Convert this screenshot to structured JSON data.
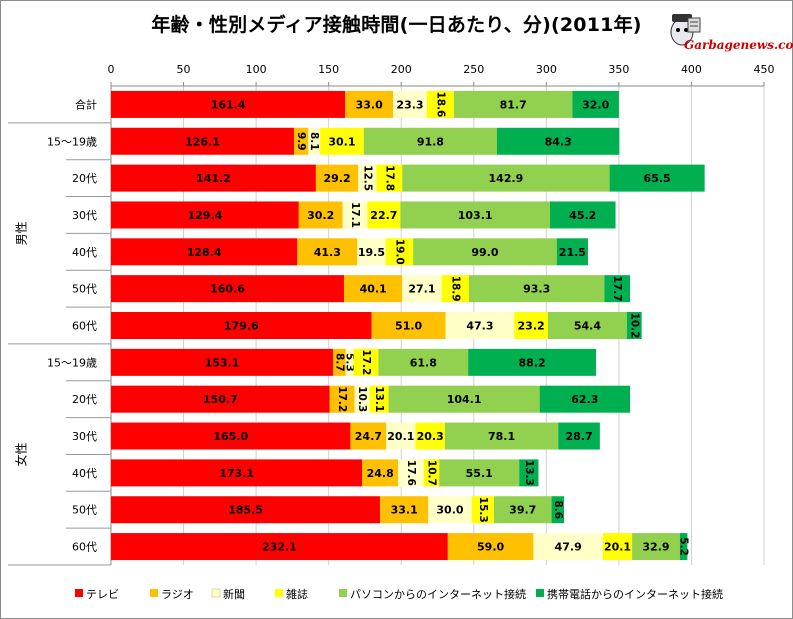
{
  "title": "年齢・性別メディア接触時間(一日あたり、分)(2011年)",
  "watermark": "Garbagenews.com",
  "chart_data": {
    "type": "bar",
    "orientation": "horizontal",
    "stacked": true,
    "xlim": [
      0,
      450
    ],
    "xticks": [
      0,
      50,
      100,
      150,
      200,
      250,
      300,
      350,
      400,
      450
    ],
    "grid": true,
    "legend_position": "bottom",
    "groups": [
      {
        "label": "男性",
        "rows": [
          1,
          6
        ]
      },
      {
        "label": "女性",
        "rows": [
          7,
          12
        ]
      }
    ],
    "categories": [
      "合計",
      "15〜19歳",
      "20代",
      "30代",
      "40代",
      "50代",
      "60代",
      "15〜19歳",
      "20代",
      "30代",
      "40代",
      "50代",
      "60代"
    ],
    "series": [
      {
        "name": "テレビ",
        "color": "#ff0000",
        "values": [
          161.4,
          126.1,
          141.2,
          129.4,
          128.4,
          160.6,
          179.6,
          153.1,
          150.7,
          165.0,
          173.1,
          185.5,
          232.1
        ]
      },
      {
        "name": "ラジオ",
        "color": "#ffc000",
        "values": [
          33.0,
          9.9,
          29.2,
          30.2,
          41.3,
          40.1,
          51.0,
          8.7,
          17.2,
          24.7,
          24.8,
          33.1,
          59.0
        ]
      },
      {
        "name": "新聞",
        "color": "#ffffc8",
        "values": [
          23.3,
          8.1,
          12.5,
          17.1,
          19.5,
          27.1,
          47.3,
          5.3,
          10.3,
          20.1,
          17.6,
          30.0,
          47.9
        ]
      },
      {
        "name": "雑誌",
        "color": "#ffff00",
        "values": [
          18.6,
          30.1,
          17.8,
          22.7,
          19.0,
          18.9,
          23.2,
          17.2,
          13.1,
          20.3,
          10.7,
          15.3,
          20.1
        ]
      },
      {
        "name": "パソコンからのインターネット接続",
        "color": "#92d050",
        "values": [
          81.7,
          91.8,
          142.9,
          103.1,
          99.0,
          93.3,
          54.4,
          61.8,
          104.1,
          78.1,
          55.1,
          39.7,
          32.9
        ]
      },
      {
        "name": "携帯電話からのインターネット接続",
        "color": "#00b050",
        "values": [
          32.0,
          84.3,
          65.5,
          45.2,
          21.5,
          17.7,
          10.2,
          88.2,
          62.3,
          28.7,
          13.3,
          8.6,
          5.2
        ]
      }
    ]
  }
}
